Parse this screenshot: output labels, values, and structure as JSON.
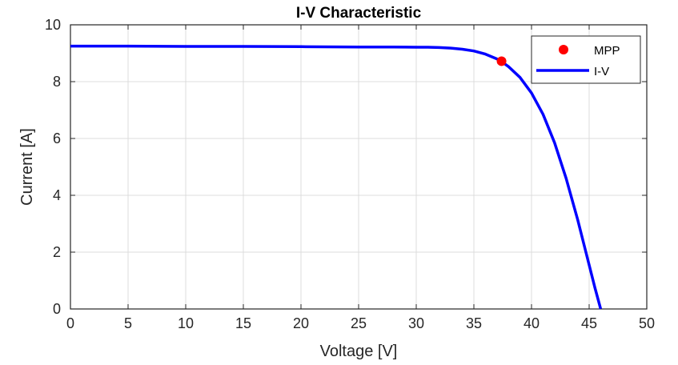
{
  "chart_data": {
    "type": "line",
    "title": "I-V Characteristic",
    "xlabel": "Voltage [V]",
    "ylabel": "Current [A]",
    "xlim": [
      0,
      50
    ],
    "ylim": [
      0,
      10
    ],
    "xticks": [
      0,
      5,
      10,
      15,
      20,
      25,
      30,
      35,
      40,
      45,
      50
    ],
    "yticks": [
      0,
      2,
      4,
      6,
      8,
      10
    ],
    "grid": true,
    "legend_position": "top-right",
    "series": [
      {
        "name": "I-V",
        "color": "#0000ff",
        "style": "line",
        "x": [
          0,
          5,
          10,
          15,
          20,
          25,
          28,
          30,
          31,
          32,
          33,
          34,
          35,
          36,
          37,
          37.5,
          38,
          39,
          40,
          41,
          42,
          43,
          44,
          45,
          45.5,
          46
        ],
        "y": [
          9.25,
          9.25,
          9.24,
          9.24,
          9.23,
          9.22,
          9.22,
          9.21,
          9.21,
          9.2,
          9.18,
          9.14,
          9.08,
          8.97,
          8.8,
          8.68,
          8.53,
          8.15,
          7.6,
          6.85,
          5.85,
          4.6,
          3.15,
          1.55,
          0.75,
          0
        ]
      },
      {
        "name": "MPP",
        "color": "#ff0000",
        "style": "marker",
        "x": [
          37.4
        ],
        "y": [
          8.72
        ]
      }
    ]
  }
}
